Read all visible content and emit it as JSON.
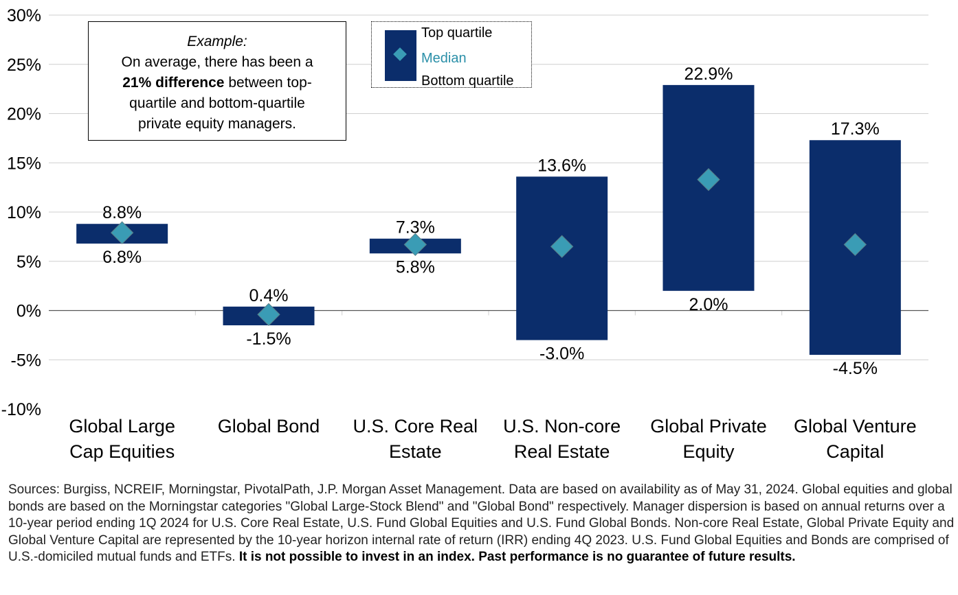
{
  "colors": {
    "bar": "#0b2d6b",
    "median": "#3a9cb5",
    "median_text": "#2a8fa8",
    "axis": "#000000",
    "grid": "#cfcfcf"
  },
  "example": {
    "title": "Example:",
    "line1": "On  average, there has been  a",
    "bold": "21% difference",
    "line2_rest": " between top-",
    "line3": "quartile and bottom-quartile",
    "line4": "private equity managers."
  },
  "legend": {
    "top": "Top quartile",
    "median": "Median",
    "bottom": "Bottom quartile"
  },
  "chart_data": {
    "type": "floating-bar",
    "ylim": [
      -10,
      30
    ],
    "yticks": [
      -10,
      -5,
      0,
      5,
      10,
      15,
      20,
      25,
      30
    ],
    "ytick_labels": [
      "-10%",
      "-5%",
      "0%",
      "5%",
      "10%",
      "15%",
      "20%",
      "25%",
      "30%"
    ],
    "grid": true,
    "legend_position": "top-center",
    "categories": [
      [
        "Global Large",
        "Cap Equities"
      ],
      [
        "Global Bond"
      ],
      [
        "U.S. Core Real",
        "Estate"
      ],
      [
        "U.S. Non-core",
        "Real Estate"
      ],
      [
        "Global Private",
        "Equity"
      ],
      [
        "Global Venture",
        "Capital"
      ]
    ],
    "top_quartile": [
      8.8,
      0.4,
      7.3,
      13.6,
      22.9,
      17.3
    ],
    "bottom_quartile": [
      6.8,
      -1.5,
      5.8,
      -3.0,
      2.0,
      -4.5
    ],
    "median": [
      7.9,
      -0.4,
      6.7,
      6.5,
      13.3,
      6.7
    ],
    "top_labels": [
      "8.8%",
      "0.4%",
      "7.3%",
      "13.6%",
      "22.9%",
      "17.3%"
    ],
    "bottom_labels": [
      "6.8%",
      "-1.5%",
      "5.8%",
      "-3.0%",
      "2.0%",
      "-4.5%"
    ]
  },
  "footnote": {
    "text": "Sources: Burgiss, NCREIF, Morningstar, PivotalPath, J.P. Morgan Asset Management. Data are based on availability as of May 31, 2024. Global equities and global bonds are based on the Morningstar categories \"Global Large-Stock Blend\" and \"Global Bond\" respectively. Manager dispersion is based on annual returns over a 10-year period ending 1Q 2024 for U.S. Core Real Estate, U.S. Fund Global Equities and U.S. Fund Global Bonds. Non-core Real Estate, Global Private Equity and Global Venture Capital are represented by the 10-year horizon internal rate of return (IRR) ending 4Q 2023. U.S. Fund Global Equities and Bonds are comprised of U.S.-domiciled mutual funds and ETFs. ",
    "bold": "It is not possible to invest in an index. Past performance is no guarantee of future results."
  }
}
